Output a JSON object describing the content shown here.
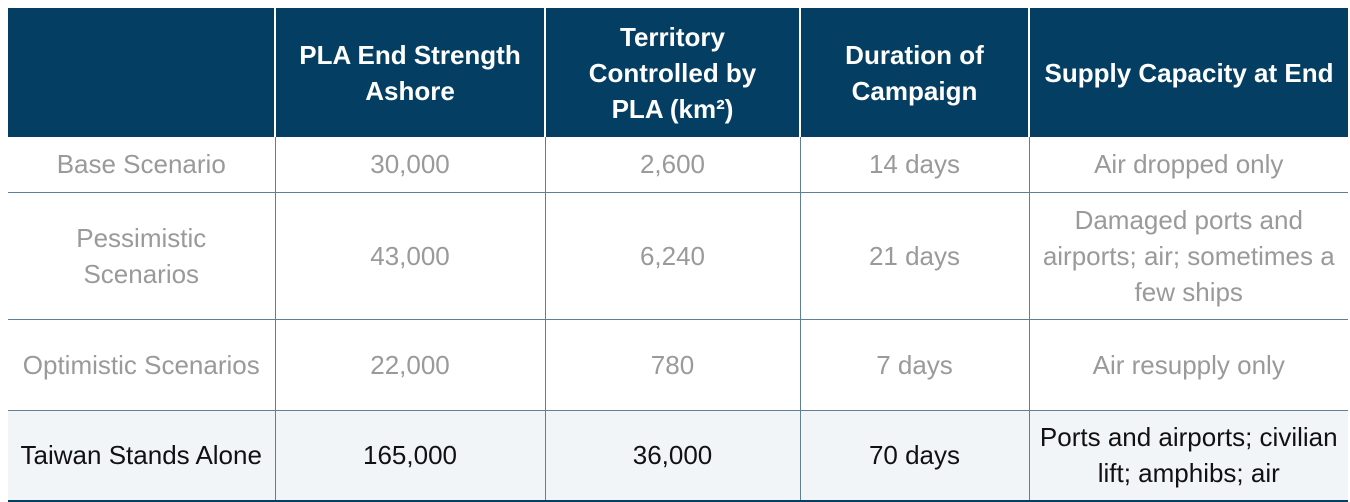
{
  "table": {
    "headers": [
      "",
      "PLA End Strength Ashore",
      "Territory Controlled by PLA (km²)",
      "Duration of Campaign",
      "Supply Capacity at End"
    ],
    "rows": [
      {
        "scenario": "Base Scenario",
        "end_strength": "30,000",
        "territory": "2,600",
        "duration": "14 days",
        "supply": "Air dropped only"
      },
      {
        "scenario": "Pessimistic Scenarios",
        "end_strength": "43,000",
        "territory": "6,240",
        "duration": "21 days",
        "supply": "Damaged ports and airports; air; sometimes a few ships"
      },
      {
        "scenario": "Optimistic Scenarios",
        "end_strength": "22,000",
        "territory": "780",
        "duration": "7 days",
        "supply": "Air resupply only"
      },
      {
        "scenario": "Taiwan Stands Alone",
        "end_strength": "165,000",
        "territory": "36,000",
        "duration": "70 days",
        "supply": "Ports and airports; civilian lift; amphibs; air"
      }
    ]
  },
  "colors": {
    "header_bg": "#043f63",
    "header_text": "#ffffff",
    "muted_text": "#9a9a9a",
    "highlight_row_bg": "#f2f5f7",
    "highlight_text": "#111111"
  }
}
